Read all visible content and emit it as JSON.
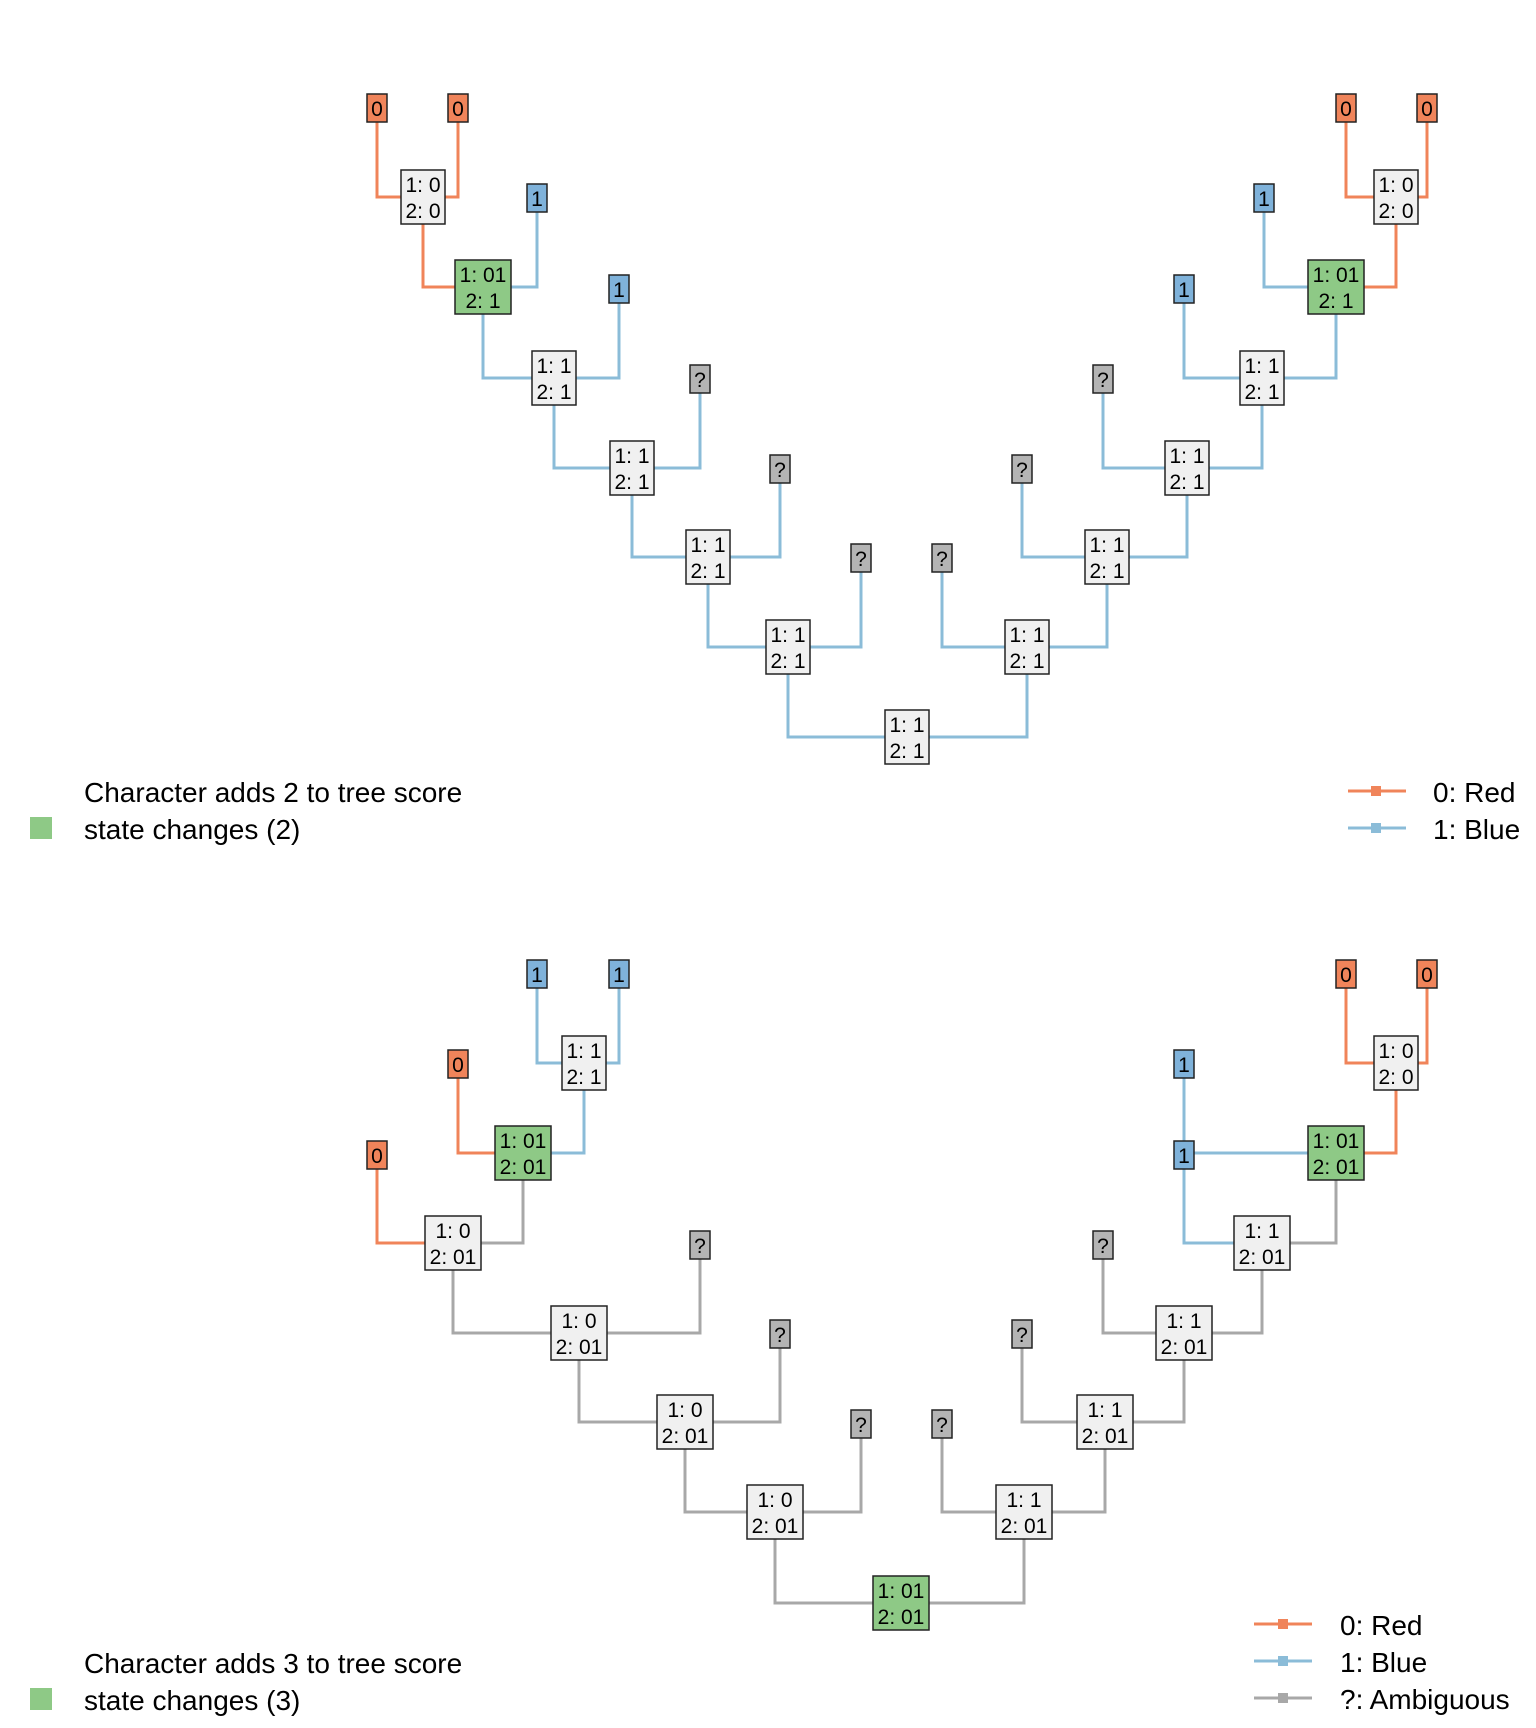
{
  "colors": {
    "red": "#f0845a",
    "blue": "#8bbcd8",
    "gray": "#a8a8a8",
    "green": "#8ec986",
    "node_bg": "#f0f0f0",
    "tip_red": "#f0845a",
    "tip_blue": "#7fb2da",
    "tip_gray": "#b4b4b4"
  },
  "panels": [
    {
      "score_text": "Character adds 2 to tree score",
      "changes_text": "state changes (2)",
      "legend": [
        {
          "color": "red",
          "label": "0: Red"
        },
        {
          "color": "blue",
          "label": "1: Blue"
        }
      ]
    },
    {
      "score_text": "Character adds 3 to tree score",
      "changes_text": "state changes (3)",
      "legend": [
        {
          "color": "red",
          "label": "0: Red"
        },
        {
          "color": "blue",
          "label": "1: Blue"
        },
        {
          "color": "gray",
          "label": "?: Ambiguous"
        }
      ]
    }
  ],
  "trees": [
    {
      "tips": [
        "0",
        "0",
        "1",
        "1",
        "?",
        "?",
        "?",
        "?",
        "?",
        "?",
        "1",
        "1",
        "0",
        "0"
      ],
      "internals": [
        {
          "l1": "1: 0",
          "l2": "2: 0",
          "fill": "node_bg"
        },
        {
          "l1": "1: 01",
          "l2": "2: 1",
          "fill": "green"
        },
        {
          "l1": "1: 1",
          "l2": "2: 1",
          "fill": "node_bg"
        },
        {
          "l1": "1: 1",
          "l2": "2: 1",
          "fill": "node_bg"
        },
        {
          "l1": "1: 1",
          "l2": "2: 1",
          "fill": "node_bg"
        },
        {
          "l1": "1: 1",
          "l2": "2: 1",
          "fill": "node_bg"
        },
        {
          "l1": "1: 1",
          "l2": "2: 1",
          "fill": "node_bg"
        },
        {
          "l1": "1: 1",
          "l2": "2: 1",
          "fill": "node_bg"
        },
        {
          "l1": "1: 1",
          "l2": "2: 1",
          "fill": "node_bg"
        },
        {
          "l1": "1: 1",
          "l2": "2: 1",
          "fill": "node_bg"
        },
        {
          "l1": "1: 1",
          "l2": "2: 1",
          "fill": "node_bg"
        },
        {
          "l1": "1: 01",
          "l2": "2: 1",
          "fill": "green"
        },
        {
          "l1": "1: 0",
          "l2": "2: 0",
          "fill": "node_bg"
        }
      ]
    },
    {
      "tips": [
        "1",
        "1",
        "0",
        "0",
        "?",
        "?",
        "?",
        "?",
        "?",
        "?",
        "1",
        "1",
        "0",
        "0"
      ],
      "internals": [
        {
          "l1": "1: 1",
          "l2": "2: 1",
          "fill": "node_bg"
        },
        {
          "l1": "1: 01",
          "l2": "2: 01",
          "fill": "green"
        },
        {
          "l1": "1: 0",
          "l2": "2: 01",
          "fill": "node_bg"
        },
        {
          "l1": "1: 0",
          "l2": "2: 01",
          "fill": "node_bg"
        },
        {
          "l1": "1: 0",
          "l2": "2: 01",
          "fill": "node_bg"
        },
        {
          "l1": "1: 0",
          "l2": "2: 01",
          "fill": "node_bg"
        },
        {
          "l1": "1: 01",
          "l2": "2: 01",
          "fill": "green"
        },
        {
          "l1": "1: 1",
          "l2": "2: 01",
          "fill": "node_bg"
        },
        {
          "l1": "1: 1",
          "l2": "2: 01",
          "fill": "node_bg"
        },
        {
          "l1": "1: 1",
          "l2": "2: 01",
          "fill": "node_bg"
        },
        {
          "l1": "1: 1",
          "l2": "2: 01",
          "fill": "node_bg"
        },
        {
          "l1": "1: 01",
          "l2": "2: 01",
          "fill": "green"
        },
        {
          "l1": "1: 0",
          "l2": "2: 0",
          "fill": "node_bg"
        }
      ]
    }
  ]
}
